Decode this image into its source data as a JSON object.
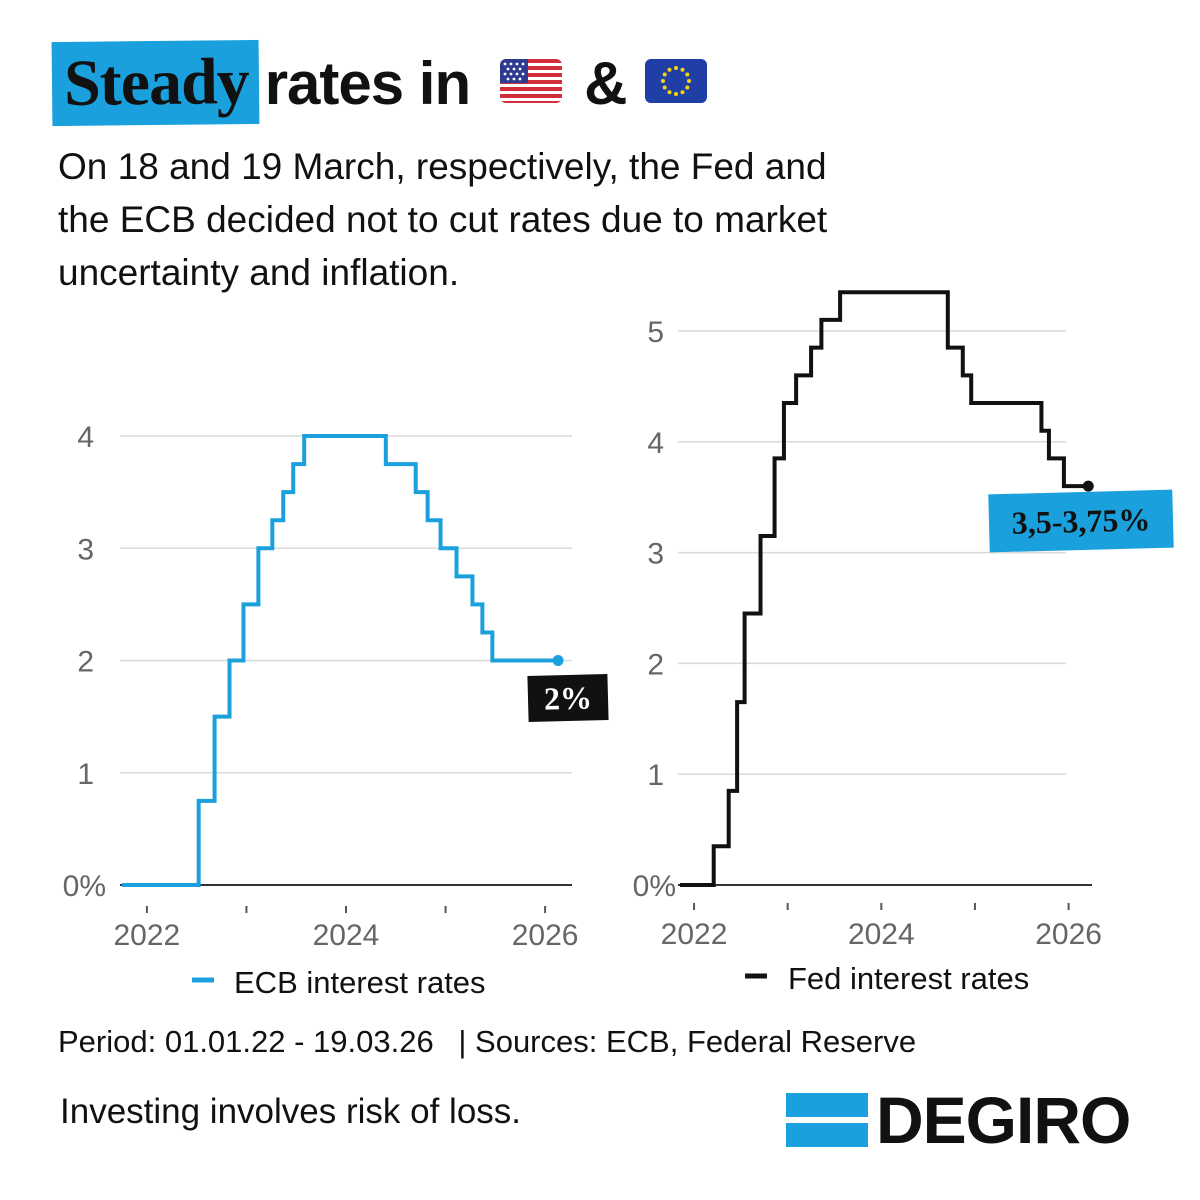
{
  "title": {
    "highlight": "Steady",
    "rest": "rates in",
    "amp": "&",
    "flags": [
      "us-flag-icon",
      "eu-flag-icon"
    ]
  },
  "subtitle": "On 18 and 19 March, respectively, the Fed and the ECB decided not to cut rates due to market uncertainty and inflation.",
  "colors": {
    "accent": "#1aa0dc",
    "ecb_line": "#1aa0dc",
    "fed_line": "#111111",
    "grid": "#d9d9d9",
    "axis_text": "#666666"
  },
  "chart_data": [
    {
      "type": "line",
      "step": true,
      "title": "",
      "legend": "ECB interest rates",
      "xlabel": "",
      "ylabel": "",
      "xlim": [
        2021.75,
        2026.25
      ],
      "ylim": [
        0,
        4
      ],
      "yticks": [
        0,
        1,
        2,
        3,
        4
      ],
      "ytick_labels": [
        "0%",
        "1",
        "2",
        "3",
        "4"
      ],
      "xticks": [
        2022,
        2024,
        2026
      ],
      "xtick_labels": [
        "2022",
        "2024",
        "2026"
      ],
      "minor_xticks": [
        2023,
        2025
      ],
      "end_label": "2%",
      "series": [
        {
          "name": "ECB interest rates",
          "x": [
            2021.75,
            2022.52,
            2022.68,
            2022.83,
            2022.97,
            2023.12,
            2023.26,
            2023.37,
            2023.47,
            2023.58,
            2024.4,
            2024.7,
            2024.82,
            2024.95,
            2025.11,
            2025.27,
            2025.37,
            2025.47,
            2026.13
          ],
          "values": [
            0,
            0.75,
            1.5,
            2.0,
            2.5,
            3.0,
            3.25,
            3.5,
            3.75,
            4.0,
            3.75,
            3.5,
            3.25,
            3.0,
            2.75,
            2.5,
            2.25,
            2.0,
            2.0
          ]
        }
      ]
    },
    {
      "type": "line",
      "step": true,
      "title": "",
      "legend": "Fed interest rates",
      "xlabel": "",
      "ylabel": "",
      "xlim": [
        2021.85,
        2026.25
      ],
      "ylim": [
        0,
        5
      ],
      "yticks": [
        0,
        1,
        2,
        3,
        4,
        5
      ],
      "ytick_labels": [
        "0%",
        "1",
        "2",
        "3",
        "4",
        "5"
      ],
      "xticks": [
        2022,
        2024,
        2026
      ],
      "xtick_labels": [
        "2022",
        "2024",
        "2026"
      ],
      "minor_xticks": [
        2023,
        2025
      ],
      "end_label": "3,5-3,75%",
      "series": [
        {
          "name": "Fed interest rates",
          "x": [
            2021.85,
            2022.21,
            2022.37,
            2022.46,
            2022.54,
            2022.71,
            2022.86,
            2022.96,
            2023.09,
            2023.25,
            2023.36,
            2023.56,
            2024.71,
            2024.87,
            2024.96,
            2025.71,
            2025.79,
            2025.95,
            2026.21
          ],
          "values": [
            0.0,
            0.35,
            0.85,
            1.65,
            2.45,
            3.15,
            3.85,
            4.35,
            4.6,
            4.85,
            5.1,
            5.35,
            4.85,
            4.6,
            4.35,
            4.1,
            3.85,
            3.6,
            3.6
          ]
        }
      ]
    }
  ],
  "footer": {
    "period": "Period: 01.01.22 - 19.03.26",
    "sources": "| Sources: ECB, Federal Reserve",
    "risk": "Investing involves risk of loss."
  },
  "logo": {
    "text": "DEGIRO"
  }
}
